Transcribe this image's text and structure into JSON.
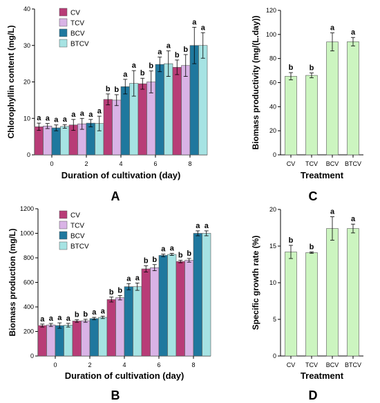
{
  "colors": {
    "CV": "#b83c77",
    "TCV": "#d9b3e6",
    "BCV": "#1f789e",
    "BTCV": "#a6e3e3",
    "treatment_bar": "#ccf5c0"
  },
  "chart_data": [
    {
      "panel": "A",
      "type": "bar",
      "ylabel": "Chlorophyllin content (mg/L)",
      "xlabel": "Duration of cultivation (day)",
      "categories": [
        "0",
        "2",
        "4",
        "6",
        "8"
      ],
      "ylim": [
        0,
        40
      ],
      "yticks": [
        "0",
        "10",
        "20",
        "30",
        "40"
      ],
      "legend_position": "top-left",
      "series": [
        {
          "name": "CV",
          "values": [
            7.7,
            8.2,
            15.2,
            19.5,
            24.0
          ],
          "errors": [
            1.0,
            1.5,
            1.5,
            1.5,
            2.0
          ],
          "letters": [
            "a",
            "a",
            "b",
            "b",
            "b"
          ]
        },
        {
          "name": "TCV",
          "values": [
            7.9,
            8.5,
            15.0,
            20.0,
            24.5
          ],
          "errors": [
            0.7,
            1.5,
            1.5,
            3.0,
            3.0
          ],
          "letters": [
            "a",
            "a",
            "b",
            "b",
            "b"
          ]
        },
        {
          "name": "BCV",
          "values": [
            7.4,
            8.7,
            18.7,
            24.8,
            30.0
          ],
          "errors": [
            0.8,
            1.0,
            2.0,
            2.0,
            5.0
          ],
          "letters": [
            "a",
            "a",
            "a",
            "a",
            "a"
          ]
        },
        {
          "name": "BTCV",
          "values": [
            7.8,
            8.6,
            19.6,
            25.0,
            30.0
          ],
          "errors": [
            0.5,
            2.0,
            3.5,
            3.5,
            3.5
          ],
          "letters": [
            "a",
            "a",
            "a",
            "a",
            "a"
          ]
        }
      ]
    },
    {
      "panel": "B",
      "type": "bar",
      "ylabel": "Biomass production (mg/L)",
      "xlabel": "Duration of cultivation (day)",
      "categories": [
        "0",
        "2",
        "4",
        "6",
        "8"
      ],
      "ylim": [
        0,
        1200
      ],
      "yticks": [
        "0",
        "200",
        "400",
        "600",
        "800",
        "1000",
        "1200"
      ],
      "legend_position": "top-left",
      "series": [
        {
          "name": "CV",
          "values": [
            248,
            285,
            460,
            710,
            770
          ],
          "errors": [
            12,
            10,
            20,
            25,
            10
          ],
          "letters": [
            "a",
            "b",
            "b",
            "b",
            "b"
          ]
        },
        {
          "name": "TCV",
          "values": [
            253,
            287,
            475,
            720,
            780
          ],
          "errors": [
            12,
            12,
            18,
            25,
            15
          ],
          "letters": [
            "a",
            "b",
            "b",
            "b",
            "b"
          ]
        },
        {
          "name": "BCV",
          "values": [
            248,
            305,
            565,
            820,
            1000
          ],
          "errors": [
            22,
            10,
            25,
            10,
            20
          ],
          "letters": [
            "a",
            "a",
            "a",
            "a",
            "a"
          ]
        },
        {
          "name": "BTCV",
          "values": [
            251,
            315,
            565,
            828,
            1000
          ],
          "errors": [
            15,
            10,
            30,
            8,
            20
          ],
          "letters": [
            "a",
            "a",
            "a",
            "a",
            "a"
          ]
        }
      ]
    },
    {
      "panel": "C",
      "type": "bar",
      "ylabel": "Biomass productivity (mg/(L.day))",
      "xlabel": "Treatment",
      "categories": [
        "CV",
        "TCV",
        "BCV",
        "BTCV"
      ],
      "ylim": [
        0,
        120
      ],
      "yticks": [
        "0",
        "20",
        "40",
        "60",
        "80",
        "100",
        "120"
      ],
      "values": [
        65.3,
        66.0,
        93.8,
        94.0
      ],
      "errors": [
        3,
        2,
        7.5,
        3.5
      ],
      "letters": [
        "b",
        "b",
        "a",
        "a"
      ]
    },
    {
      "panel": "D",
      "type": "bar",
      "ylabel": "Specific growth rate (%)",
      "xlabel": "Treatment",
      "categories": [
        "CV",
        "TCV",
        "BCV",
        "BTCV"
      ],
      "ylim": [
        0,
        20
      ],
      "yticks": [
        "0",
        "5",
        "10",
        "15",
        "20"
      ],
      "values": [
        14.2,
        14.1,
        17.4,
        17.4
      ],
      "errors": [
        0.9,
        0.1,
        1.6,
        0.6
      ],
      "letters": [
        "b",
        "b",
        "a",
        "a"
      ]
    }
  ]
}
